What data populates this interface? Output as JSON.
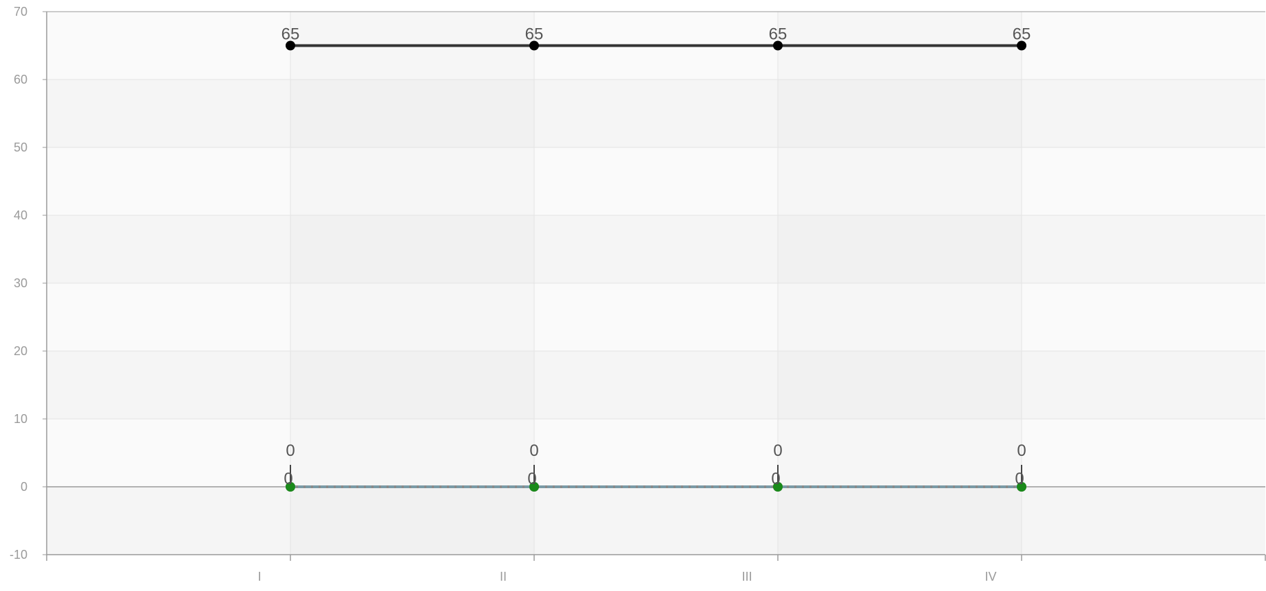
{
  "chart_data": {
    "type": "line",
    "categories": [
      "I",
      "II",
      "III",
      "IV"
    ],
    "ylim": [
      -10,
      70
    ],
    "yticks": [
      -10,
      0,
      10,
      20,
      30,
      40,
      50,
      60,
      70
    ],
    "grid": true,
    "legend": "none",
    "series": [
      {
        "values": [
          65,
          65,
          65,
          65
        ],
        "color": "#000000",
        "line_color": "#333333",
        "style": "solid"
      },
      {
        "values": [
          0,
          0,
          0,
          0
        ],
        "color": "#1a8a1a",
        "line_color": "#7a9aa6",
        "style": "dashed"
      },
      {
        "values": [
          0,
          0,
          0,
          0
        ],
        "color": "#444444",
        "line_color": "#8a8a8a",
        "style": "solid"
      }
    ],
    "colors": {
      "axis": "#9a9a9a",
      "grid": "#e4e4e4",
      "band_light": "#fafafa",
      "band_dark": "#f5f5f5"
    }
  }
}
